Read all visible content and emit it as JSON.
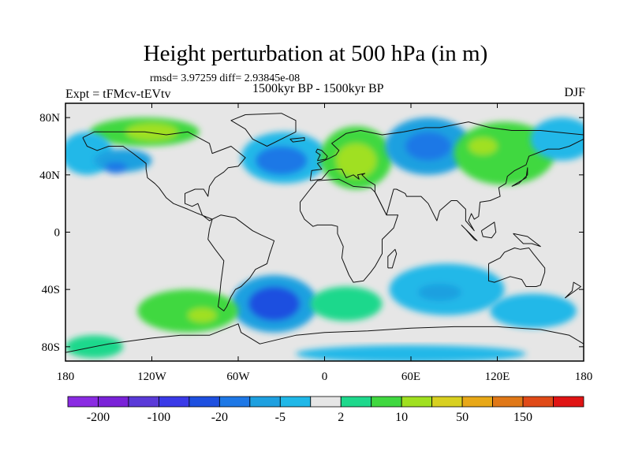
{
  "title": "Height perturbation at 500 hPa (in m)",
  "stats_line": "rmsd= 3.97259 diff= 2.93845e-08",
  "period": "1500kyr BP - 1500kyr BP",
  "experiment": "Expt = tFMcv-tEVtv",
  "season": "DJF",
  "map": {
    "projection": "cylindrical-equidistant",
    "lon_range": [
      -180,
      180
    ],
    "lat_range": [
      -90,
      90
    ],
    "lat_ticks": [
      {
        "value": 80,
        "label": "80N"
      },
      {
        "value": 40,
        "label": "40N"
      },
      {
        "value": 0,
        "label": "0"
      },
      {
        "value": -40,
        "label": "40S"
      },
      {
        "value": -80,
        "label": "80S"
      }
    ],
    "lon_ticks": [
      {
        "value": -180,
        "label": "180"
      },
      {
        "value": -120,
        "label": "120W"
      },
      {
        "value": -60,
        "label": "60W"
      },
      {
        "value": 0,
        "label": "0"
      },
      {
        "value": 60,
        "label": "60E"
      },
      {
        "value": 120,
        "label": "120E"
      },
      {
        "value": 180,
        "label": "180"
      }
    ],
    "neutral_color": "#e6e6e6"
  },
  "colorbar": {
    "colors": [
      "#8a2be2",
      "#7a22d8",
      "#5a3ad8",
      "#3a3ae8",
      "#1e50e0",
      "#1e78e6",
      "#1ea0e0",
      "#20b8e8",
      "#e6e6e6",
      "#1ed88c",
      "#40d840",
      "#a0e020",
      "#d8d020",
      "#e8a818",
      "#e07818",
      "#e04a18",
      "#e01414"
    ],
    "labels": [
      {
        "text": "-200",
        "index": 1
      },
      {
        "text": "-100",
        "index": 3
      },
      {
        "text": "-20",
        "index": 5
      },
      {
        "text": "-5",
        "index": 7
      },
      {
        "text": "2",
        "index": 9
      },
      {
        "text": "10",
        "index": 11
      },
      {
        "text": "50",
        "index": 13
      },
      {
        "text": "150",
        "index": 15
      }
    ]
  },
  "anomalies": [
    {
      "name": "canada-positive",
      "lon": -125,
      "lat": 70,
      "rx": 38,
      "ry": 10,
      "color": "#40d840",
      "interior": [
        {
          "lon": -120,
          "lat": 70,
          "rx": 18,
          "ry": 6,
          "color": "#a0e020"
        }
      ]
    },
    {
      "name": "pacific-north-negative",
      "lon": -165,
      "lat": 55,
      "rx": 18,
      "ry": 15,
      "color": "#20b8e8",
      "interior": []
    },
    {
      "name": "north-america-negative",
      "lon": -140,
      "lat": 50,
      "rx": 20,
      "ry": 8,
      "color": "#1ea0e0",
      "interior": [
        {
          "lon": -145,
          "lat": 45,
          "rx": 8,
          "ry": 4,
          "color": "#1e78e6"
        }
      ]
    },
    {
      "name": "atlantic-negative",
      "lon": -28,
      "lat": 52,
      "rx": 30,
      "ry": 18,
      "color": "#20b8e8",
      "interior": [
        {
          "lon": -30,
          "lat": 50,
          "rx": 18,
          "ry": 10,
          "color": "#1e78e6"
        }
      ]
    },
    {
      "name": "europe-positive",
      "lon": 22,
      "lat": 52,
      "rx": 25,
      "ry": 22,
      "color": "#40d840",
      "interior": [
        {
          "lon": 22,
          "lat": 50,
          "rx": 14,
          "ry": 12,
          "color": "#a0e020"
        }
      ]
    },
    {
      "name": "siberia-negative",
      "lon": 72,
      "lat": 60,
      "rx": 30,
      "ry": 20,
      "color": "#1ea0e0",
      "interior": [
        {
          "lon": 72,
          "lat": 60,
          "rx": 16,
          "ry": 10,
          "color": "#1e78e6"
        }
      ]
    },
    {
      "name": "east-asia-positive",
      "lon": 125,
      "lat": 55,
      "rx": 35,
      "ry": 22,
      "color": "#40d840",
      "interior": [
        {
          "lon": 110,
          "lat": 60,
          "rx": 10,
          "ry": 6,
          "color": "#a0e020"
        }
      ]
    },
    {
      "name": "nw-pacific-negative",
      "lon": 165,
      "lat": 65,
      "rx": 22,
      "ry": 15,
      "color": "#20b8e8",
      "interior": []
    },
    {
      "name": "sw-atlantic-negative",
      "lon": -35,
      "lat": -50,
      "rx": 30,
      "ry": 20,
      "color": "#1ea0e0",
      "interior": [
        {
          "lon": -35,
          "lat": -50,
          "rx": 18,
          "ry": 12,
          "color": "#1e50e0"
        }
      ]
    },
    {
      "name": "se-pacific-positive",
      "lon": -95,
      "lat": -55,
      "rx": 35,
      "ry": 15,
      "color": "#40d840",
      "interior": [
        {
          "lon": -85,
          "lat": -58,
          "rx": 10,
          "ry": 5,
          "color": "#a0e020"
        }
      ]
    },
    {
      "name": "indian-ocean-negative",
      "lon": 85,
      "lat": -40,
      "rx": 40,
      "ry": 18,
      "color": "#20b8e8",
      "interior": [
        {
          "lon": 80,
          "lat": -42,
          "rx": 15,
          "ry": 6,
          "color": "#1ea0e0"
        }
      ]
    },
    {
      "name": "south-atlantic-positive",
      "lon": 15,
      "lat": -50,
      "rx": 25,
      "ry": 12,
      "color": "#1ed88c",
      "interior": []
    },
    {
      "name": "australia-south-negative",
      "lon": 145,
      "lat": -55,
      "rx": 30,
      "ry": 12,
      "color": "#20b8e8",
      "interior": []
    },
    {
      "name": "antarctic-negative",
      "lon": 60,
      "lat": -85,
      "rx": 80,
      "ry": 6,
      "color": "#20b8e8",
      "interior": []
    },
    {
      "name": "ross-sea-positive",
      "lon": -160,
      "lat": -80,
      "rx": 20,
      "ry": 8,
      "color": "#1ed88c",
      "interior": []
    }
  ],
  "coastlines": [
    {
      "name": "north-america",
      "pts": [
        [
          -168,
          66
        ],
        [
          -160,
          70
        ],
        [
          -140,
          70
        ],
        [
          -125,
          70
        ],
        [
          -110,
          68
        ],
        [
          -95,
          70
        ],
        [
          -80,
          62
        ],
        [
          -78,
          55
        ],
        [
          -65,
          60
        ],
        [
          -55,
          52
        ],
        [
          -60,
          46
        ],
        [
          -67,
          45
        ],
        [
          -70,
          42
        ],
        [
          -76,
          38
        ],
        [
          -80,
          32
        ],
        [
          -81,
          25
        ],
        [
          -84,
          30
        ],
        [
          -90,
          30
        ],
        [
          -97,
          27
        ],
        [
          -97,
          20
        ],
        [
          -92,
          18
        ],
        [
          -88,
          20
        ],
        [
          -85,
          12
        ],
        [
          -80,
          8
        ],
        [
          -78,
          9
        ],
        [
          -88,
          13
        ],
        [
          -95,
          16
        ],
        [
          -105,
          20
        ],
        [
          -110,
          24
        ],
        [
          -115,
          31
        ],
        [
          -118,
          34
        ],
        [
          -123,
          38
        ],
        [
          -124,
          44
        ],
        [
          -124,
          48
        ],
        [
          -133,
          55
        ],
        [
          -140,
          60
        ],
        [
          -150,
          60
        ],
        [
          -158,
          57
        ],
        [
          -165,
          60
        ],
        [
          -168,
          66
        ]
      ]
    },
    {
      "name": "south-america",
      "pts": [
        [
          -78,
          9
        ],
        [
          -72,
          12
        ],
        [
          -62,
          10
        ],
        [
          -50,
          1
        ],
        [
          -44,
          -2
        ],
        [
          -35,
          -6
        ],
        [
          -38,
          -15
        ],
        [
          -40,
          -22
        ],
        [
          -48,
          -26
        ],
        [
          -52,
          -32
        ],
        [
          -58,
          -38
        ],
        [
          -62,
          -40
        ],
        [
          -65,
          -45
        ],
        [
          -68,
          -52
        ],
        [
          -70,
          -55
        ],
        [
          -74,
          -52
        ],
        [
          -73,
          -45
        ],
        [
          -72,
          -35
        ],
        [
          -70,
          -20
        ],
        [
          -76,
          -12
        ],
        [
          -81,
          -5
        ],
        [
          -80,
          2
        ],
        [
          -78,
          9
        ]
      ]
    },
    {
      "name": "greenland",
      "pts": [
        [
          -55,
          82
        ],
        [
          -30,
          83
        ],
        [
          -20,
          78
        ],
        [
          -20,
          70
        ],
        [
          -40,
          60
        ],
        [
          -50,
          65
        ],
        [
          -55,
          72
        ],
        [
          -65,
          78
        ],
        [
          -55,
          82
        ]
      ]
    },
    {
      "name": "africa",
      "pts": [
        [
          -17,
          15
        ],
        [
          -17,
          21
        ],
        [
          -10,
          30
        ],
        [
          -5,
          36
        ],
        [
          10,
          37
        ],
        [
          20,
          32
        ],
        [
          32,
          31
        ],
        [
          35,
          28
        ],
        [
          43,
          12
        ],
        [
          51,
          12
        ],
        [
          48,
          3
        ],
        [
          40,
          -5
        ],
        [
          40,
          -15
        ],
        [
          35,
          -24
        ],
        [
          32,
          -28
        ],
        [
          27,
          -34
        ],
        [
          20,
          -35
        ],
        [
          17,
          -30
        ],
        [
          12,
          -18
        ],
        [
          13,
          -10
        ],
        [
          9,
          -1
        ],
        [
          9,
          4
        ],
        [
          5,
          5
        ],
        [
          -5,
          5
        ],
        [
          -8,
          4
        ],
        [
          -14,
          9
        ],
        [
          -17,
          15
        ]
      ]
    },
    {
      "name": "eurasia",
      "pts": [
        [
          -10,
          36
        ],
        [
          -9,
          43
        ],
        [
          -2,
          44
        ],
        [
          -5,
          48
        ],
        [
          2,
          51
        ],
        [
          8,
          54
        ],
        [
          10,
          57
        ],
        [
          5,
          62
        ],
        [
          15,
          69
        ],
        [
          25,
          71
        ],
        [
          40,
          68
        ],
        [
          55,
          70
        ],
        [
          70,
          73
        ],
        [
          80,
          73
        ],
        [
          100,
          77
        ],
        [
          115,
          73
        ],
        [
          130,
          71
        ],
        [
          150,
          71
        ],
        [
          170,
          69
        ],
        [
          180,
          68
        ],
        [
          180,
          65
        ],
        [
          170,
          60
        ],
        [
          163,
          58
        ],
        [
          155,
          58
        ],
        [
          142,
          53
        ],
        [
          140,
          47
        ],
        [
          132,
          43
        ],
        [
          127,
          39
        ],
        [
          126,
          34
        ],
        [
          121,
          31
        ],
        [
          122,
          25
        ],
        [
          115,
          22
        ],
        [
          108,
          21
        ],
        [
          107,
          11
        ],
        [
          104,
          9
        ],
        [
          102,
          13
        ],
        [
          100,
          8
        ],
        [
          104,
          1
        ],
        [
          98,
          8
        ],
        [
          98,
          16
        ],
        [
          92,
          22
        ],
        [
          88,
          22
        ],
        [
          80,
          15
        ],
        [
          78,
          8
        ],
        [
          72,
          20
        ],
        [
          67,
          25
        ],
        [
          57,
          25
        ],
        [
          56,
          27
        ],
        [
          50,
          30
        ],
        [
          48,
          30
        ],
        [
          43,
          12
        ],
        [
          35,
          28
        ],
        [
          35,
          33
        ],
        [
          30,
          36
        ],
        [
          26,
          40
        ],
        [
          28,
          41
        ],
        [
          23,
          40
        ],
        [
          24,
          37
        ],
        [
          20,
          40
        ],
        [
          15,
          38
        ],
        [
          12,
          44
        ],
        [
          8,
          44
        ],
        [
          3,
          43
        ],
        [
          -2,
          37
        ],
        [
          -10,
          36
        ]
      ]
    },
    {
      "name": "australia",
      "pts": [
        [
          114,
          -22
        ],
        [
          114,
          -34
        ],
        [
          118,
          -35
        ],
        [
          129,
          -31
        ],
        [
          137,
          -33
        ],
        [
          140,
          -38
        ],
        [
          147,
          -38
        ],
        [
          150,
          -37
        ],
        [
          153,
          -28
        ],
        [
          153,
          -25
        ],
        [
          145,
          -15
        ],
        [
          142,
          -11
        ],
        [
          136,
          -12
        ],
        [
          132,
          -11
        ],
        [
          125,
          -14
        ],
        [
          122,
          -18
        ],
        [
          114,
          -22
        ]
      ]
    },
    {
      "name": "antarctica",
      "pts": [
        [
          -180,
          -84
        ],
        [
          -150,
          -78
        ],
        [
          -120,
          -74
        ],
        [
          -100,
          -72
        ],
        [
          -80,
          -72
        ],
        [
          -60,
          -64
        ],
        [
          -58,
          -70
        ],
        [
          -45,
          -78
        ],
        [
          -20,
          -72
        ],
        [
          0,
          -70
        ],
        [
          30,
          -69
        ],
        [
          60,
          -67
        ],
        [
          90,
          -66
        ],
        [
          120,
          -66
        ],
        [
          150,
          -68
        ],
        [
          170,
          -72
        ],
        [
          180,
          -78
        ]
      ]
    },
    {
      "name": "britain",
      "pts": [
        [
          -5,
          50
        ],
        [
          1,
          51
        ],
        [
          2,
          53
        ],
        [
          -2,
          57
        ],
        [
          -5,
          58
        ],
        [
          -6,
          56
        ],
        [
          -3,
          54
        ],
        [
          -5,
          50
        ]
      ]
    },
    {
      "name": "madagascar",
      "pts": [
        [
          44,
          -25
        ],
        [
          47,
          -25
        ],
        [
          50,
          -15
        ],
        [
          49,
          -12
        ],
        [
          44,
          -17
        ],
        [
          44,
          -25
        ]
      ]
    },
    {
      "name": "japan",
      "pts": [
        [
          130,
          32
        ],
        [
          135,
          34
        ],
        [
          141,
          40
        ],
        [
          141,
          45
        ],
        [
          140,
          38
        ],
        [
          135,
          35
        ],
        [
          130,
          32
        ]
      ]
    },
    {
      "name": "new-zealand",
      "pts": [
        [
          167,
          -46
        ],
        [
          174,
          -41
        ],
        [
          178,
          -38
        ],
        [
          173,
          -35
        ],
        [
          172,
          -41
        ],
        [
          167,
          -46
        ]
      ]
    },
    {
      "name": "new-guinea",
      "pts": [
        [
          131,
          -1
        ],
        [
          141,
          -3
        ],
        [
          150,
          -10
        ],
        [
          144,
          -8
        ],
        [
          138,
          -8
        ],
        [
          131,
          -1
        ]
      ]
    },
    {
      "name": "borneo",
      "pts": [
        [
          109,
          1
        ],
        [
          118,
          7
        ],
        [
          119,
          0
        ],
        [
          116,
          -4
        ],
        [
          110,
          -3
        ],
        [
          109,
          1
        ]
      ]
    },
    {
      "name": "sumatra",
      "pts": [
        [
          95,
          5
        ],
        [
          106,
          -6
        ],
        [
          104,
          -5
        ],
        [
          98,
          2
        ],
        [
          95,
          5
        ]
      ]
    },
    {
      "name": "iceland",
      "pts": [
        [
          -24,
          65
        ],
        [
          -14,
          66
        ],
        [
          -14,
          64
        ],
        [
          -22,
          63
        ],
        [
          -24,
          65
        ]
      ]
    }
  ]
}
